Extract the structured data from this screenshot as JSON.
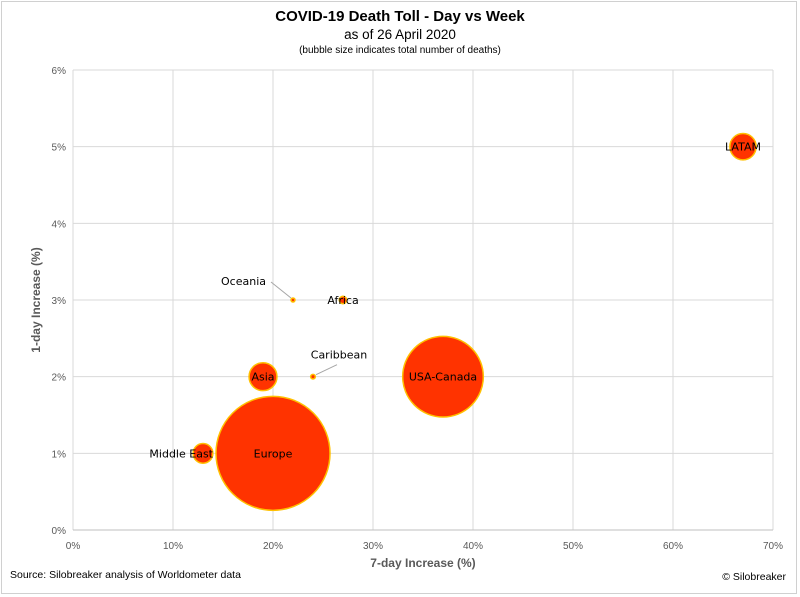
{
  "header": {
    "title": "COVID-19 Death Toll - Day vs Week",
    "subtitle": "as of 26 April 2020",
    "note": "(bubble size indicates total number of deaths)"
  },
  "footer": {
    "source": "Source: Silobreaker analysis of Worldometer data",
    "copyright": "© Silobreaker"
  },
  "colors": {
    "bubble_fill": "#ff3300",
    "bubble_stroke": "#ffc000",
    "grid": "#d9d9d9",
    "axis": "#bfbfbf",
    "leader": "#a6a6a6"
  },
  "chart_data": {
    "type": "scatter",
    "title": "COVID-19 Death Toll - Day vs Week",
    "xlabel": "7-day Increase (%)",
    "ylabel": "1-day Increase (%)",
    "xlim": [
      0,
      70
    ],
    "ylim": [
      0,
      6
    ],
    "x_ticks": [
      "0%",
      "10%",
      "20%",
      "30%",
      "40%",
      "50%",
      "60%",
      "70%"
    ],
    "y_ticks": [
      "0%",
      "1%",
      "2%",
      "3%",
      "4%",
      "5%",
      "6%"
    ],
    "grid": true,
    "bubble_size_measure": "total number of deaths (relative, estimated from bubble area)",
    "points": [
      {
        "label": "LATAM",
        "x": 67,
        "y": 5,
        "size": 16000,
        "label_pos": "center"
      },
      {
        "label": "Africa",
        "x": 27,
        "y": 3,
        "size": 1300,
        "label_pos": "center"
      },
      {
        "label": "Oceania",
        "x": 22,
        "y": 3,
        "size": 100,
        "label_pos": "leader-left"
      },
      {
        "label": "Caribbean",
        "x": 24,
        "y": 2,
        "size": 500,
        "label_pos": "leader-right"
      },
      {
        "label": "Asia",
        "x": 19,
        "y": 2,
        "size": 18000,
        "label_pos": "center"
      },
      {
        "label": "USA-Canada",
        "x": 37,
        "y": 2,
        "size": 150000,
        "label_pos": "center"
      },
      {
        "label": "Middle East",
        "x": 13,
        "y": 1,
        "size": 9000,
        "label_pos": "left"
      },
      {
        "label": "Europe",
        "x": 20,
        "y": 1,
        "size": 300000,
        "label_pos": "center"
      }
    ]
  }
}
